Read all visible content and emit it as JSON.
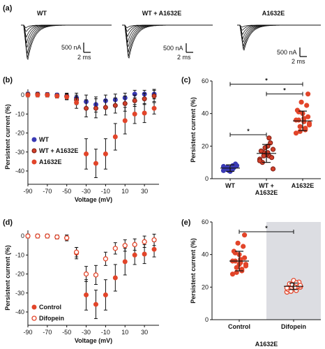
{
  "panels": {
    "a": "(a)",
    "b": "(b)",
    "c": "(c)",
    "d": "(d)",
    "e": "(e)"
  },
  "traces": {
    "labels": [
      "WT",
      "WT + A1632E",
      "A1632E"
    ],
    "scale_current": [
      "500 nA",
      "500 nA",
      "500 nA"
    ],
    "scale_time": [
      "2 ms",
      "2 ms",
      "2 ms"
    ]
  },
  "colors": {
    "wt": "#3a3ab4",
    "mix": "#d0402a",
    "mutant": "#e2452a",
    "difopein_fill": "#ffffff",
    "shade": "#dcdde2"
  },
  "chart_data": [
    {
      "id": "b",
      "type": "scatter",
      "xlabel": "Voltage (mV)",
      "ylabel": "Persistent current (%)",
      "xlim": [
        -90,
        45
      ],
      "ylim": [
        -47,
        3
      ],
      "xticks": [
        -90,
        -70,
        -50,
        -30,
        -10,
        10,
        30
      ],
      "yticks": [
        0,
        -10,
        -20,
        -30,
        -40
      ],
      "legend": "left",
      "series": [
        {
          "name": "WT",
          "x": [
            -90,
            -80,
            -70,
            -60,
            -50,
            -40,
            -30,
            -20,
            -10,
            0,
            10,
            20,
            30,
            40
          ],
          "y": [
            0.5,
            0.5,
            0.3,
            0,
            -0.5,
            -1.5,
            -3.5,
            -5,
            -3,
            -2.5,
            -1.5,
            0.5,
            0.5,
            0.5
          ],
          "err": [
            1,
            1,
            1,
            1,
            1.5,
            2.5,
            3.5,
            4,
            3,
            3,
            2.5,
            2,
            2,
            2.5
          ]
        },
        {
          "name": "WT + A1632E",
          "x": [
            -90,
            -80,
            -70,
            -60,
            -50,
            -40,
            -30,
            -20,
            -10,
            0,
            10,
            20,
            30,
            40
          ],
          "y": [
            0.2,
            0.3,
            0,
            -0.5,
            -0.8,
            -2.5,
            -7,
            -7,
            -6.5,
            -5.5,
            -4.5,
            -3,
            -2,
            -0.5
          ],
          "err": [
            1,
            1,
            1,
            1,
            1.5,
            2.5,
            4.5,
            5,
            4,
            4,
            4,
            3,
            3,
            3
          ]
        },
        {
          "name": "A1632E",
          "x": [
            -90,
            -80,
            -70,
            -60,
            -50,
            -40,
            -30,
            -20,
            -10,
            0,
            10,
            20,
            30,
            40
          ],
          "y": [
            0,
            0,
            0,
            -0.5,
            -1,
            -4,
            -31,
            -36,
            -31,
            -22,
            -13.5,
            -10,
            -9.5,
            -7
          ],
          "err": [
            1,
            1,
            1,
            1,
            1.5,
            3,
            8,
            7.5,
            8,
            7,
            7,
            5,
            5,
            3
          ]
        }
      ]
    },
    {
      "id": "c",
      "type": "scatter",
      "categories": [
        "WT",
        "WT +\nA1632E",
        "A1632E"
      ],
      "ylabel": "Persistent current (%)",
      "ylim": [
        0,
        60
      ],
      "yticks": [
        0,
        20,
        40,
        60
      ],
      "means": [
        6.5,
        15.5,
        35.5
      ],
      "sd": [
        2,
        5.5,
        6
      ],
      "points": [
        [
          5,
          6,
          7,
          8,
          5.5,
          6.5,
          9,
          4.5,
          6,
          7,
          5,
          7.5,
          8
        ],
        [
          12,
          14,
          16,
          18,
          20,
          10,
          13,
          15,
          17,
          22,
          19,
          11,
          25,
          14,
          6,
          16
        ],
        [
          28,
          30,
          32,
          33,
          35,
          36,
          38,
          40,
          42,
          45,
          47,
          36,
          31,
          29,
          34,
          37,
          41,
          52
        ]
      ],
      "significance": [
        "*",
        "*",
        "*"
      ]
    },
    {
      "id": "d",
      "type": "scatter",
      "xlabel": "Voltage (mV)",
      "ylabel": "Persistent current (%)",
      "xlim": [
        -90,
        45
      ],
      "ylim": [
        -47,
        3
      ],
      "xticks": [
        -90,
        -70,
        -50,
        -30,
        -10,
        10,
        30
      ],
      "yticks": [
        0,
        -10,
        -20,
        -30,
        -40
      ],
      "legend": "bottom-left",
      "series": [
        {
          "name": "Control",
          "x": [
            -90,
            -80,
            -70,
            -60,
            -50,
            -40,
            -30,
            -20,
            -10,
            0,
            10,
            20,
            30,
            40
          ],
          "y": [
            0,
            0,
            0,
            -0.5,
            -1,
            -9,
            -31,
            -36,
            -31,
            -22,
            -13.5,
            -10,
            -9.5,
            -7
          ],
          "err": [
            1,
            1,
            1,
            1,
            1.5,
            3,
            8,
            7.5,
            8,
            7,
            7,
            5,
            5,
            4
          ]
        },
        {
          "name": "Difopein",
          "x": [
            -90,
            -80,
            -70,
            -60,
            -50,
            -40,
            -30,
            -20,
            -10,
            0,
            10,
            20,
            30,
            40
          ],
          "y": [
            0,
            0,
            0,
            -0.5,
            -1,
            -8.5,
            -20,
            -20.5,
            -12,
            -6.5,
            -5,
            -4.5,
            -3,
            -2
          ],
          "err": [
            1,
            1,
            1,
            1,
            1.5,
            2.5,
            4,
            5,
            3.5,
            3,
            3,
            3,
            3,
            3
          ]
        }
      ]
    },
    {
      "id": "e",
      "type": "scatter",
      "categories": [
        "Control",
        "Difopein"
      ],
      "ylabel": "Persistent current (%)",
      "xlabel": "A1632E",
      "ylim": [
        0,
        60
      ],
      "yticks": [
        0,
        20,
        40,
        60
      ],
      "means": [
        36,
        20.5
      ],
      "sd": [
        6,
        2
      ],
      "points": [
        [
          28,
          30,
          32,
          33,
          35,
          36,
          38,
          40,
          42,
          45,
          47,
          36,
          31,
          29,
          34,
          37,
          41,
          52,
          34
        ],
        [
          17,
          18,
          19,
          20,
          21,
          22,
          23,
          24,
          18.5,
          20.5,
          21.5,
          19.5,
          22.5,
          17.5,
          21,
          20
        ]
      ],
      "significance": [
        "*"
      ]
    }
  ]
}
